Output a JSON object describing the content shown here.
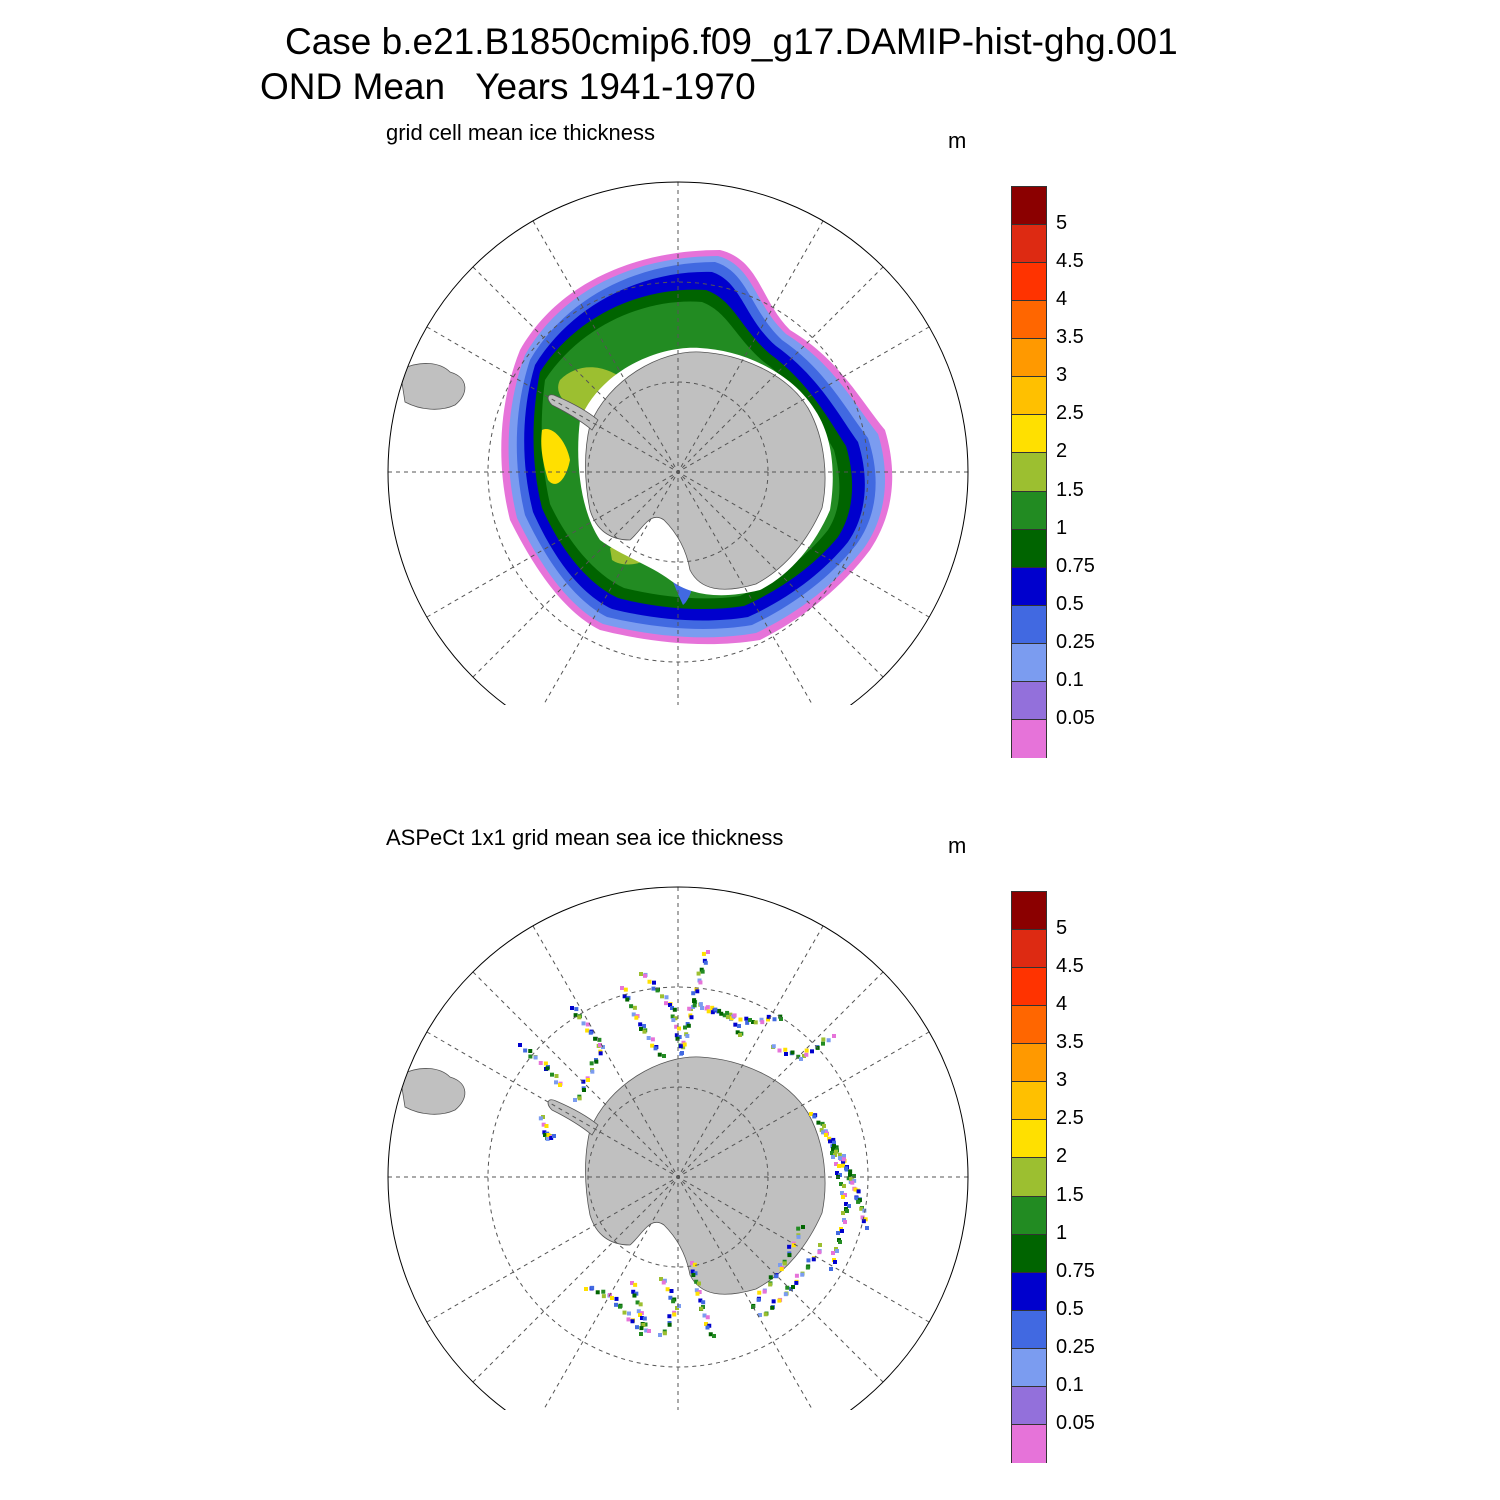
{
  "header": {
    "case_title": "Case b.e21.B1850cmip6.f09_g17.DAMIP-hist-ghg.001",
    "period_title": "OND Mean   Years 1941-1970"
  },
  "panels": [
    {
      "subtitle": "grid cell mean ice thickness",
      "units": "m",
      "kind": "model"
    },
    {
      "subtitle": "ASPeCt 1x1 grid mean sea ice thickness",
      "units": "m",
      "kind": "observations"
    }
  ],
  "colorbar": {
    "labels": [
      "5",
      "4.5",
      "4",
      "3.5",
      "3",
      "2.5",
      "2",
      "1.5",
      "1",
      "0.75",
      "0.5",
      "0.25",
      "0.1",
      "0.05"
    ],
    "colors": [
      "#8b0000",
      "#dd2a12",
      "#ff3300",
      "#ff6600",
      "#ff9900",
      "#ffc000",
      "#ffe000",
      "#9cbf30",
      "#228b22",
      "#006400",
      "#0000cd",
      "#4169e1",
      "#7b9cf0",
      "#9370db",
      "#e673d9"
    ]
  },
  "map_style": {
    "land_color": "#c0c0c0",
    "grid_line_color": "#555555",
    "projection": "south polar stereographic"
  }
}
